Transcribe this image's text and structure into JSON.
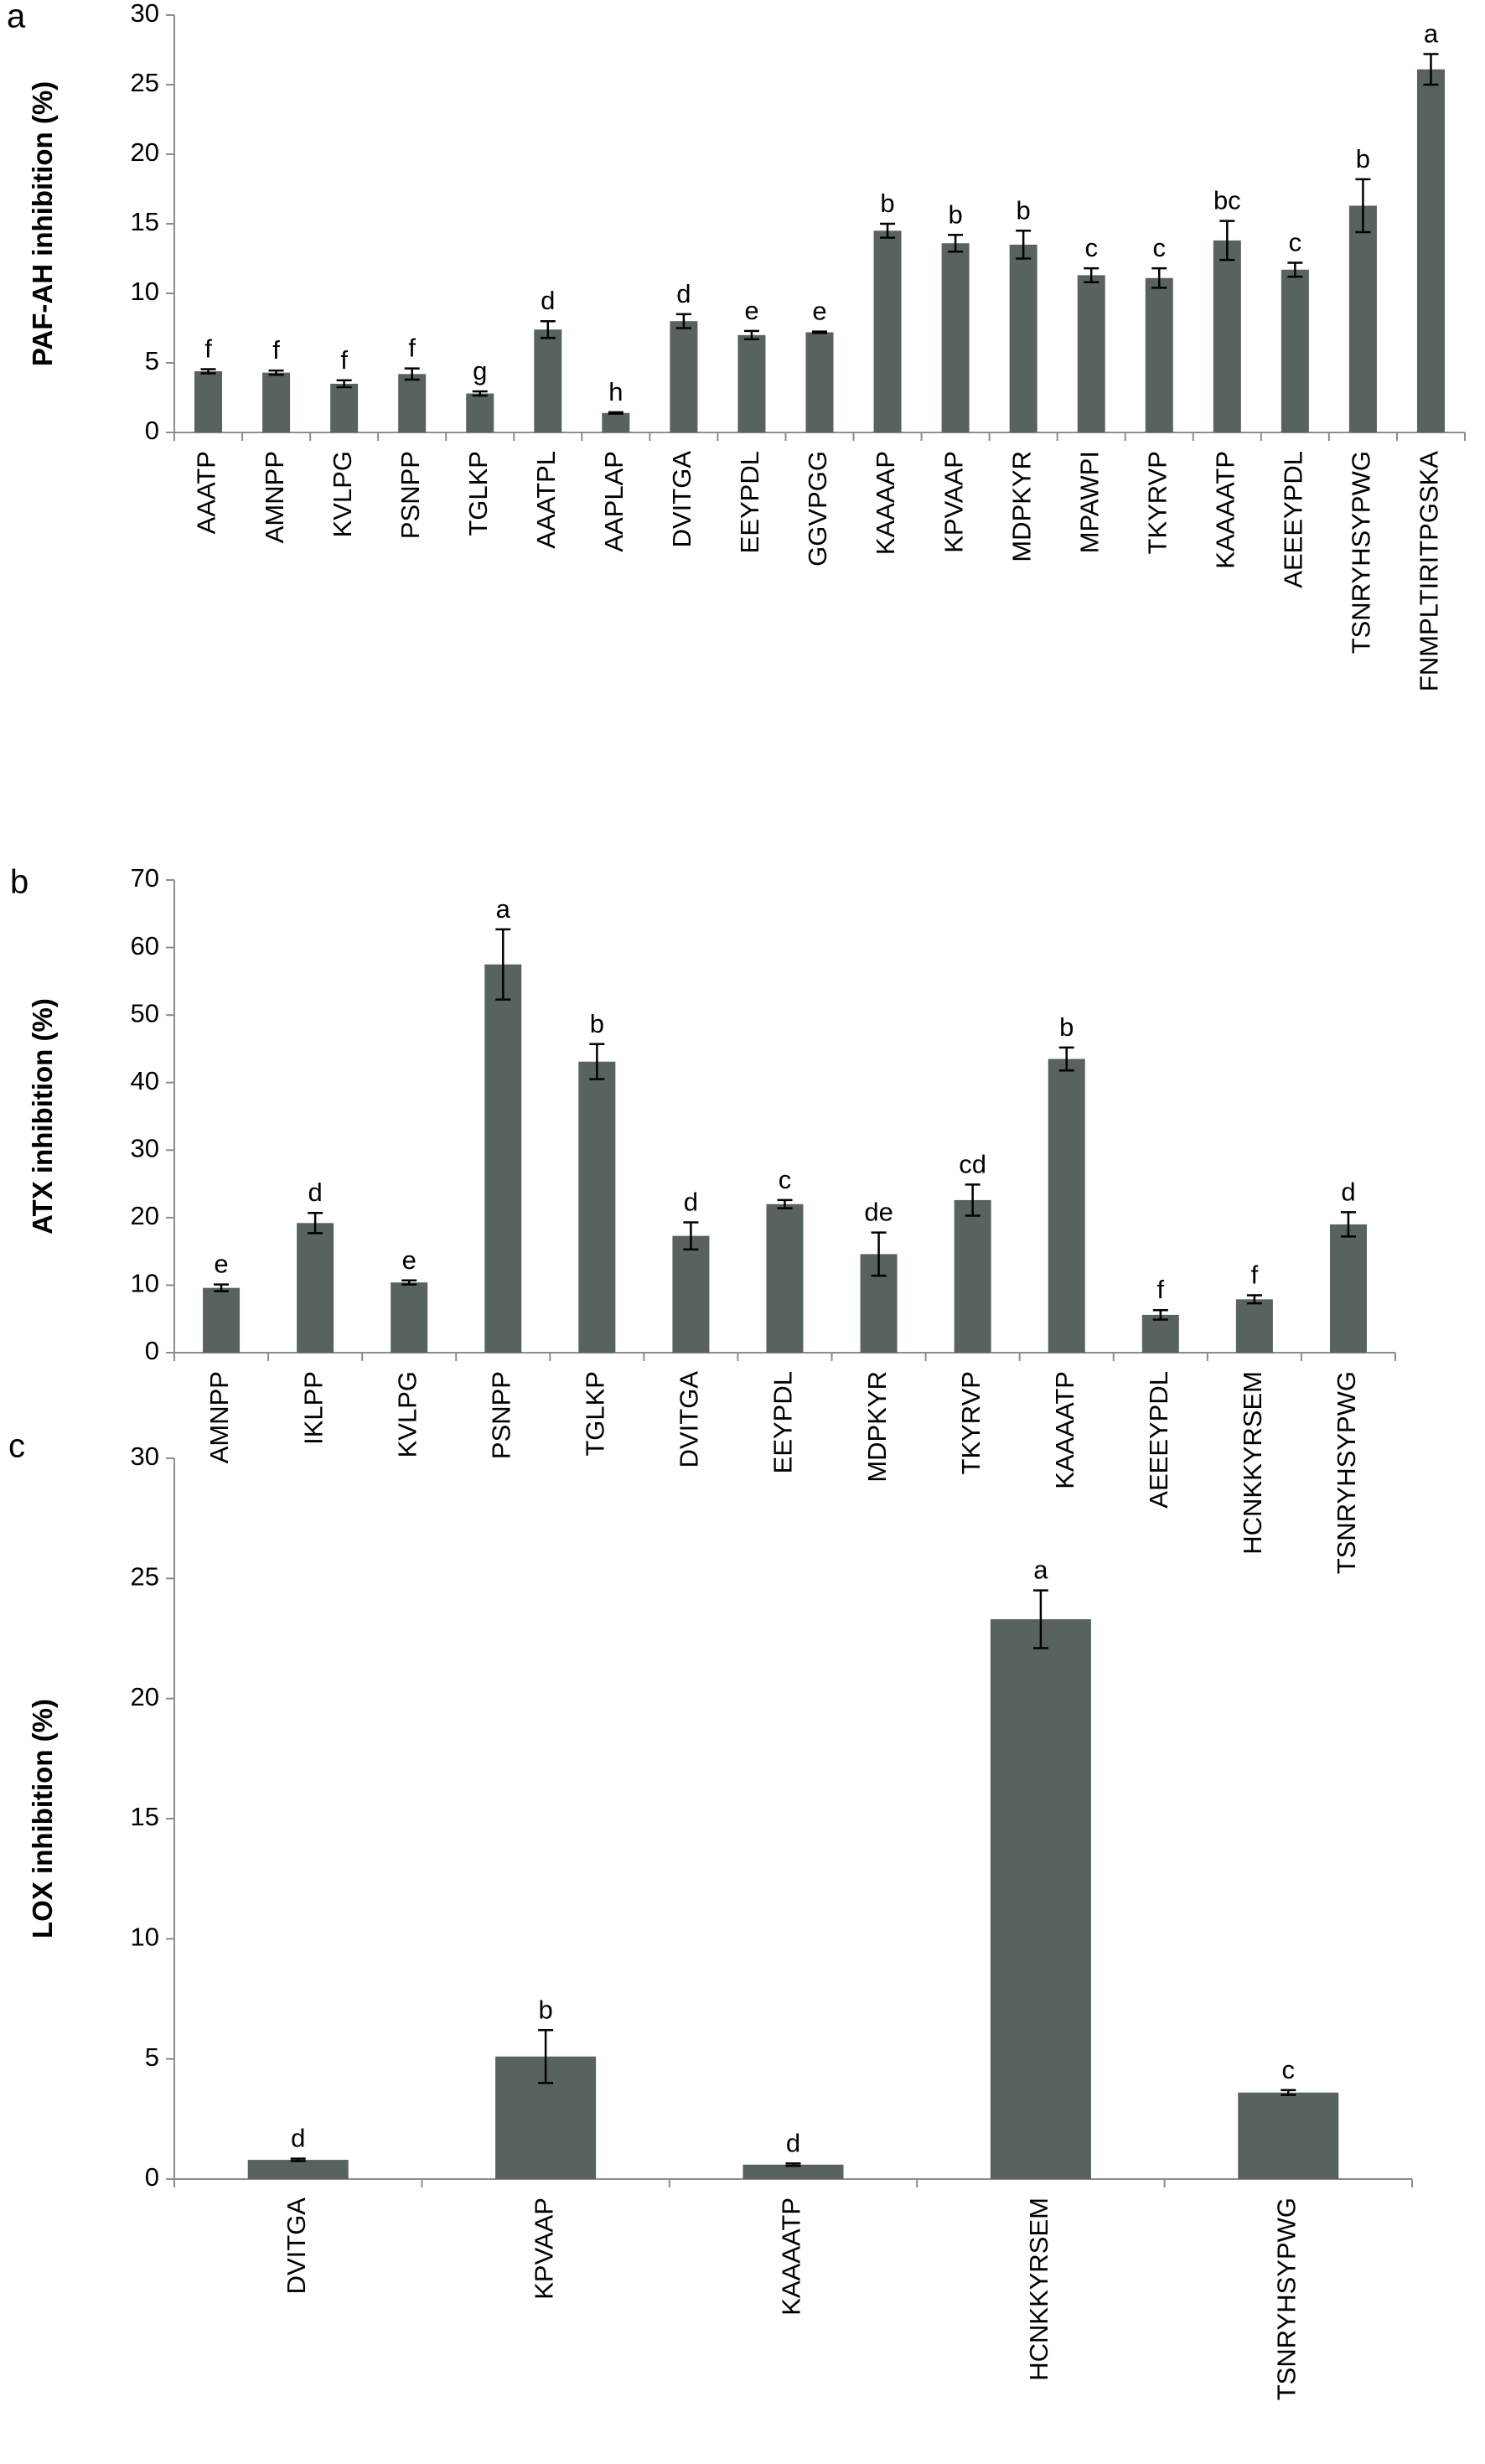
{
  "chart_data": [
    {
      "type": "bar",
      "panel_label": "a",
      "ylabel": "PAF-AH inhibition (%)",
      "ylim": [
        0,
        30
      ],
      "yticks": [
        0,
        5,
        10,
        15,
        20,
        25,
        30
      ],
      "categories": [
        "AAATP",
        "AMNPP",
        "KVLPG",
        "PSNPP",
        "TGLKP",
        "AAATPL",
        "AAPLAP",
        "DVITGA",
        "EEYPDL",
        "GGVPGG",
        "KAAAAP",
        "KPVAAP",
        "MDPKYR",
        "MPAWPI",
        "TKYRVP",
        "KAAAATP",
        "AEEEYPDL",
        "TSNRYHSYPWG",
        "FNMPLTIRITPGSKA"
      ],
      "values": [
        4.4,
        4.3,
        3.5,
        4.2,
        2.8,
        7.4,
        1.4,
        8.0,
        7.0,
        7.2,
        14.5,
        13.6,
        13.5,
        11.3,
        11.1,
        13.8,
        11.7,
        16.3,
        26.1
      ],
      "errors": [
        0.15,
        0.15,
        0.25,
        0.4,
        0.15,
        0.6,
        0.05,
        0.5,
        0.3,
        0.05,
        0.5,
        0.6,
        1.0,
        0.5,
        0.7,
        1.4,
        0.5,
        1.9,
        1.1
      ],
      "letters": [
        "f",
        "f",
        "f",
        "f",
        "g",
        "d",
        "h",
        "d",
        "e",
        "e",
        "b",
        "b",
        "b",
        "c",
        "c",
        "bc",
        "c",
        "b",
        "a"
      ],
      "grid": false,
      "color": "#586261"
    },
    {
      "type": "bar",
      "panel_label": "b",
      "ylabel": "ATX inhibition (%)",
      "ylim": [
        0,
        70
      ],
      "yticks": [
        0,
        10,
        20,
        30,
        40,
        50,
        60,
        70
      ],
      "categories": [
        "AMNPP",
        "IKLPP",
        "KVLPG",
        "PSNPP",
        "TGLKP",
        "DVITGA",
        "EEYPDL",
        "MDPKYR",
        "TKYRVP",
        "KAAAATP",
        "AEEEYPDL",
        "HCNKKYRSEM",
        "TSNRYHSYPWG"
      ],
      "values": [
        9.6,
        19.2,
        10.4,
        57.5,
        43.1,
        17.3,
        22.0,
        14.6,
        22.6,
        43.5,
        5.6,
        7.9,
        19.0
      ],
      "errors": [
        0.5,
        1.5,
        0.3,
        5.2,
        2.6,
        2.0,
        0.6,
        3.2,
        2.3,
        1.7,
        0.7,
        0.6,
        1.8
      ],
      "letters": [
        "e",
        "d",
        "e",
        "a",
        "b",
        "d",
        "c",
        "de",
        "cd",
        "b",
        "f",
        "f",
        "d"
      ],
      "grid": false,
      "color": "#586261"
    },
    {
      "type": "bar",
      "panel_label": "c",
      "ylabel": "LOX inhibition (%)",
      "ylim": [
        0,
        30
      ],
      "yticks": [
        0,
        5,
        10,
        15,
        20,
        25,
        30
      ],
      "categories": [
        "DVITGA",
        "KPVAAP",
        "KAAAATP",
        "HCNKKYRSEM",
        "TSNRYHSYPWG"
      ],
      "values": [
        0.8,
        5.1,
        0.6,
        23.3,
        3.6
      ],
      "errors": [
        0.05,
        1.1,
        0.05,
        1.2,
        0.1
      ],
      "letters": [
        "d",
        "b",
        "d",
        "a",
        "c"
      ],
      "grid": false,
      "color": "#586261"
    }
  ]
}
